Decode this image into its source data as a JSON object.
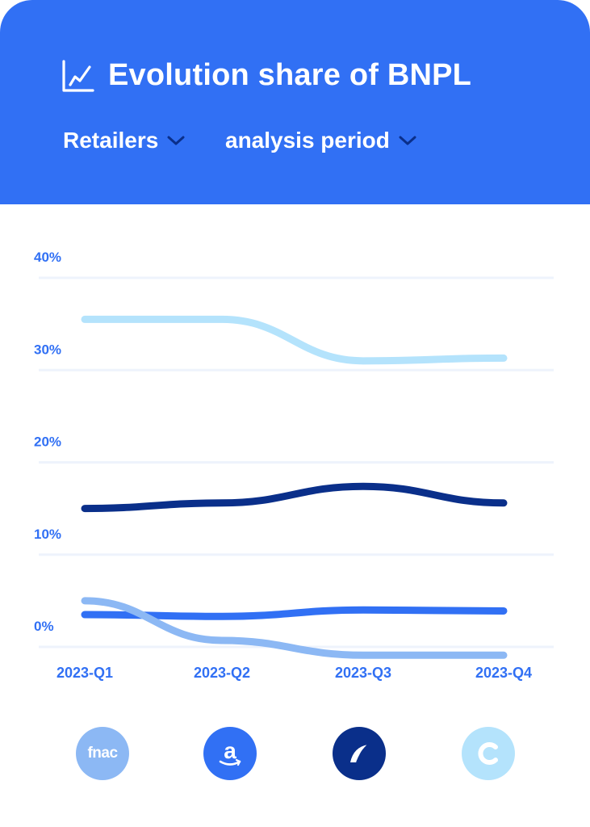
{
  "header": {
    "title": "Evolution share of BNPL",
    "title_icon": "line-chart-icon",
    "filters": [
      {
        "label": "Retailers",
        "icon": "chevron-down-icon"
      },
      {
        "label": "analysis period",
        "icon": "chevron-down-icon"
      }
    ],
    "background_color": "#3170f4"
  },
  "chart_data": {
    "type": "line",
    "categories": [
      "2023-Q1",
      "2023-Q2",
      "2023-Q3",
      "2023-Q4"
    ],
    "y_tick_labels": [
      "40%",
      "30%",
      "20%",
      "10%",
      "0%"
    ],
    "ylim": [
      0,
      40
    ],
    "grid": true,
    "series": [
      {
        "color": "#b4e3fc",
        "values": [
          35.5,
          35.5,
          31,
          31.3
        ]
      },
      {
        "color": "#0a2f8a",
        "values": [
          15,
          15.6,
          17.4,
          15.6
        ]
      },
      {
        "color": "#3170f4",
        "values": [
          3.5,
          3.3,
          4,
          3.9
        ]
      },
      {
        "color": "#8cb8f4",
        "values": [
          5,
          0.7,
          -0.9,
          -0.9
        ]
      }
    ]
  },
  "logos": [
    {
      "name": "fnac",
      "text": "fnac",
      "color": "#8cb8f4"
    },
    {
      "name": "amazon",
      "color": "#3170f4"
    },
    {
      "name": "cetelem",
      "color": "#0a2f8a"
    },
    {
      "name": "cdiscount",
      "color": "#b4e3fc"
    }
  ]
}
